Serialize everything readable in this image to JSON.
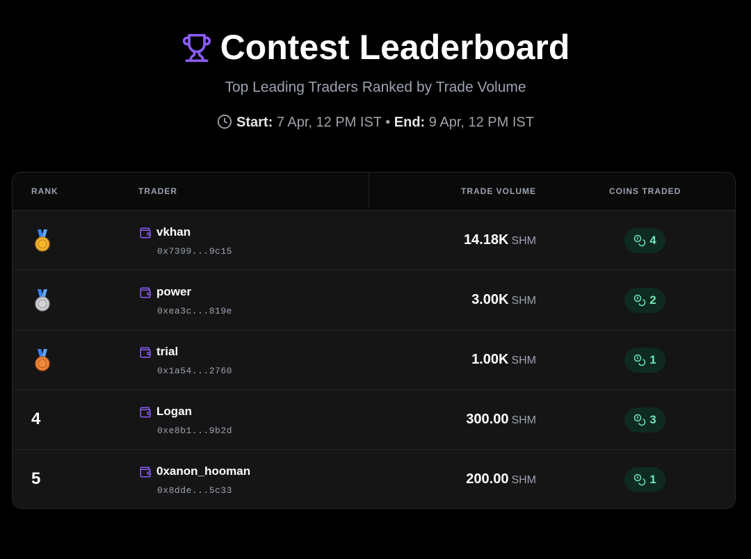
{
  "header": {
    "title": "Contest Leaderboard",
    "subtitle": "Top Leading Traders Ranked by Trade Volume",
    "start_label": "Start:",
    "start": "7 Apr, 12 PM IST",
    "separator": "•",
    "end_label": "End:",
    "end": "9 Apr, 12 PM IST"
  },
  "table": {
    "columns": [
      "RANK",
      "TRADER",
      "TRADE VOLUME",
      "COINS TRADED"
    ],
    "rows": [
      {
        "name": "vkhan",
        "address": "0x7399...9c15",
        "volume": "14.18K",
        "unit": "SHM",
        "coins": 4
      },
      {
        "name": "power",
        "address": "0xea3c...819e",
        "volume": "3.00K",
        "unit": "SHM",
        "coins": 2
      },
      {
        "name": "trial",
        "address": "0x1a54...2760",
        "volume": "1.00K",
        "unit": "SHM",
        "coins": 1
      },
      {
        "rank": 4,
        "name": "Logan",
        "address": "0xe8b1...9b2d",
        "volume": "300.00",
        "unit": "SHM",
        "coins": 3
      },
      {
        "rank": 5,
        "name": "0xanon_hooman",
        "address": "0x8dde...5c33",
        "volume": "200.00",
        "unit": "SHM",
        "coins": 1
      }
    ]
  }
}
